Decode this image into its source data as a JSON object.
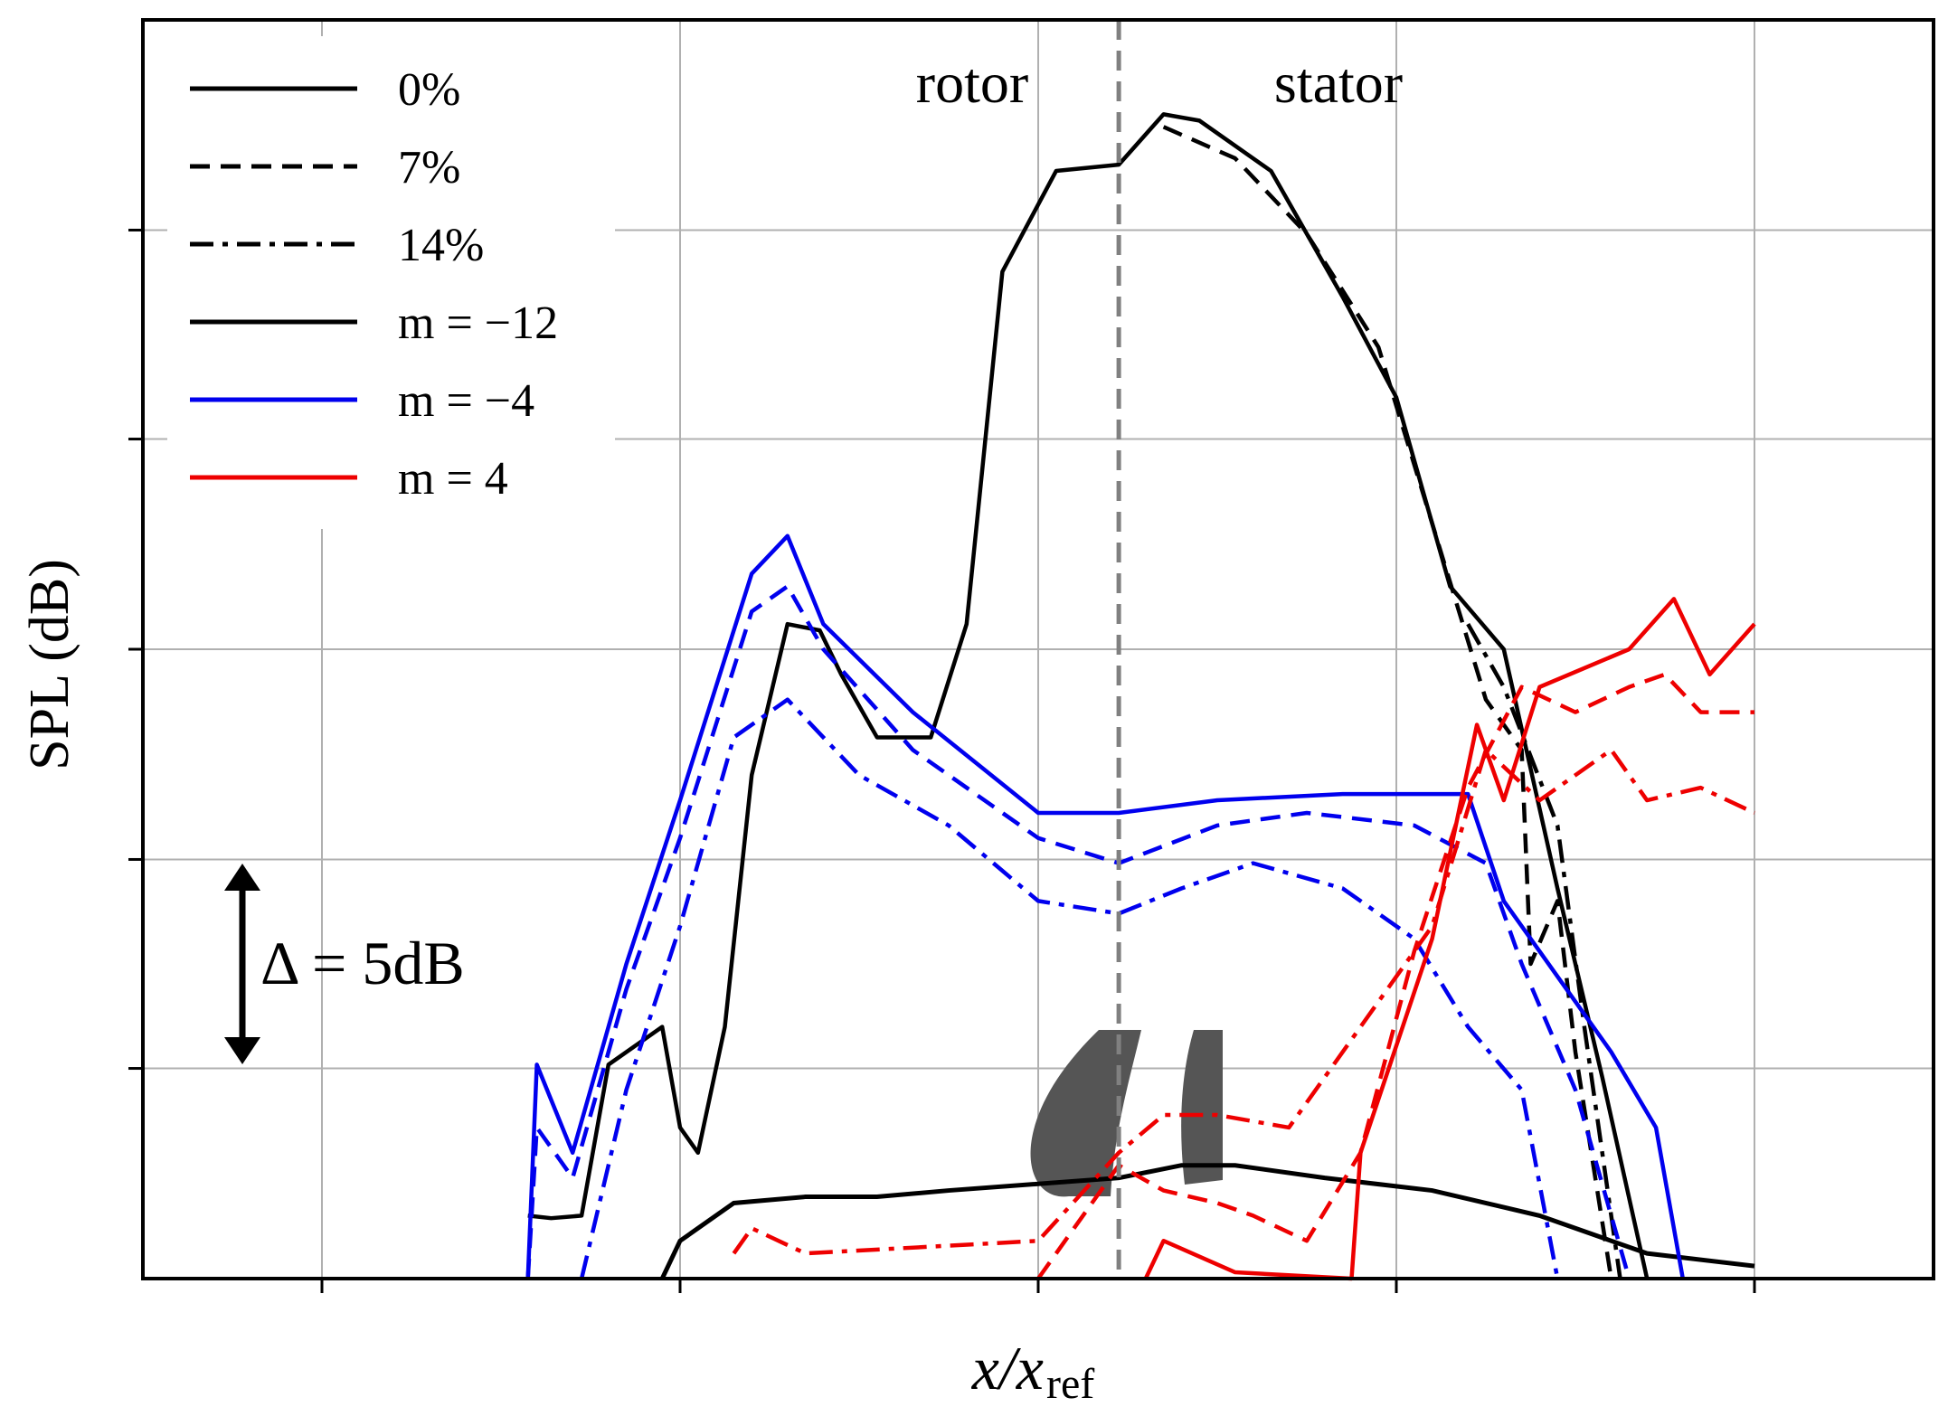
{
  "chart_data": {
    "type": "line",
    "title": "",
    "xlabel": "x/x",
    "xlabel_sub": "ref",
    "ylabel": "SPL (dB)",
    "xlim": [
      0,
      1
    ],
    "ylim": [
      0,
      1
    ],
    "grid": true,
    "x_ticks": [
      0.1,
      0.3,
      0.5,
      0.7,
      0.9
    ],
    "y_ticks": [
      0.167,
      0.333,
      0.5,
      0.667,
      0.833
    ],
    "legend_position": "top-left",
    "legend": [
      {
        "label": "0%",
        "color": "#000000",
        "style": "solid"
      },
      {
        "label": "7%",
        "color": "#000000",
        "style": "dashed"
      },
      {
        "label": "14%",
        "color": "#000000",
        "style": "dashdot"
      },
      {
        "label": "m = −12",
        "color": "#000000",
        "style": "solid"
      },
      {
        "label": "m =  −4",
        "color": "#0000ee",
        "style": "solid"
      },
      {
        "label": "m =    4",
        "color": "#ee0000",
        "style": "solid"
      }
    ],
    "annotations": {
      "rotor": "rotor",
      "stator": "stator",
      "delta": "Δ =  5dB",
      "interface_x": 0.545
    },
    "series": [
      {
        "name": "m=-12 0%",
        "color": "#000000",
        "dash": "solid",
        "points": [
          [
            0.215,
            0.05
          ],
          [
            0.228,
            0.048
          ],
          [
            0.245,
            0.05
          ],
          [
            0.26,
            0.17
          ],
          [
            0.29,
            0.2
          ],
          [
            0.3,
            0.12
          ],
          [
            0.31,
            0.1
          ],
          [
            0.325,
            0.2
          ],
          [
            0.34,
            0.4
          ],
          [
            0.36,
            0.52
          ],
          [
            0.378,
            0.515
          ],
          [
            0.39,
            0.48
          ],
          [
            0.41,
            0.43
          ],
          [
            0.44,
            0.43
          ],
          [
            0.46,
            0.52
          ],
          [
            0.48,
            0.8
          ],
          [
            0.51,
            0.88
          ],
          [
            0.545,
            0.885
          ],
          [
            0.57,
            0.925
          ],
          [
            0.59,
            0.92
          ],
          [
            0.63,
            0.88
          ],
          [
            0.67,
            0.78
          ],
          [
            0.7,
            0.7
          ],
          [
            0.73,
            0.55
          ],
          [
            0.76,
            0.5
          ],
          [
            0.79,
            0.31
          ],
          [
            0.815,
            0.16
          ],
          [
            0.84,
            0.0
          ]
        ]
      },
      {
        "name": "m=-12 7%",
        "color": "#000000",
        "dash": "dashed",
        "points": [
          [
            0.57,
            0.915
          ],
          [
            0.61,
            0.89
          ],
          [
            0.65,
            0.83
          ],
          [
            0.69,
            0.74
          ],
          [
            0.72,
            0.6
          ],
          [
            0.75,
            0.46
          ],
          [
            0.77,
            0.42
          ],
          [
            0.775,
            0.25
          ],
          [
            0.79,
            0.3
          ],
          [
            0.8,
            0.18
          ],
          [
            0.82,
            0.0
          ]
        ]
      },
      {
        "name": "m=-12 14%",
        "color": "#000000",
        "dash": "dashdot",
        "points": [
          [
            0.74,
            0.52
          ],
          [
            0.76,
            0.47
          ],
          [
            0.79,
            0.36
          ],
          [
            0.805,
            0.2
          ],
          [
            0.825,
            0.0
          ]
        ]
      },
      {
        "name": "m=-4 0%",
        "color": "#0000ee",
        "dash": "solid",
        "points": [
          [
            0.215,
            0.0
          ],
          [
            0.22,
            0.17
          ],
          [
            0.24,
            0.1
          ],
          [
            0.27,
            0.25
          ],
          [
            0.3,
            0.38
          ],
          [
            0.34,
            0.56
          ],
          [
            0.36,
            0.59
          ],
          [
            0.38,
            0.52
          ],
          [
            0.43,
            0.45
          ],
          [
            0.5,
            0.37
          ],
          [
            0.545,
            0.37
          ],
          [
            0.6,
            0.38
          ],
          [
            0.67,
            0.385
          ],
          [
            0.74,
            0.385
          ],
          [
            0.76,
            0.3
          ],
          [
            0.78,
            0.26
          ],
          [
            0.82,
            0.18
          ],
          [
            0.845,
            0.12
          ],
          [
            0.86,
            0.0
          ]
        ]
      },
      {
        "name": "m=-4 7%",
        "color": "#0000ee",
        "dash": "dashed",
        "points": [
          [
            0.215,
            0.0
          ],
          [
            0.22,
            0.12
          ],
          [
            0.24,
            0.08
          ],
          [
            0.27,
            0.23
          ],
          [
            0.3,
            0.35
          ],
          [
            0.34,
            0.53
          ],
          [
            0.36,
            0.55
          ],
          [
            0.38,
            0.5
          ],
          [
            0.43,
            0.42
          ],
          [
            0.5,
            0.35
          ],
          [
            0.545,
            0.33
          ],
          [
            0.6,
            0.36
          ],
          [
            0.65,
            0.37
          ],
          [
            0.71,
            0.36
          ],
          [
            0.75,
            0.33
          ],
          [
            0.77,
            0.25
          ],
          [
            0.8,
            0.15
          ],
          [
            0.83,
            0.0
          ]
        ]
      },
      {
        "name": "m=-4 14%",
        "color": "#0000ee",
        "dash": "dashdot",
        "points": [
          [
            0.245,
            0.0
          ],
          [
            0.27,
            0.15
          ],
          [
            0.3,
            0.28
          ],
          [
            0.33,
            0.43
          ],
          [
            0.36,
            0.46
          ],
          [
            0.4,
            0.4
          ],
          [
            0.45,
            0.36
          ],
          [
            0.5,
            0.3
          ],
          [
            0.545,
            0.29
          ],
          [
            0.58,
            0.31
          ],
          [
            0.62,
            0.33
          ],
          [
            0.67,
            0.31
          ],
          [
            0.71,
            0.27
          ],
          [
            0.74,
            0.2
          ],
          [
            0.77,
            0.15
          ],
          [
            0.79,
            0.0
          ]
        ]
      },
      {
        "name": "m=4 0%",
        "color": "#ee0000",
        "dash": "solid",
        "points": [
          [
            0.56,
            0.0
          ],
          [
            0.57,
            0.03
          ],
          [
            0.61,
            0.005
          ],
          [
            0.675,
            0.0
          ],
          [
            0.68,
            0.1
          ],
          [
            0.72,
            0.27
          ],
          [
            0.745,
            0.44
          ],
          [
            0.76,
            0.38
          ],
          [
            0.78,
            0.47
          ],
          [
            0.83,
            0.5
          ],
          [
            0.855,
            0.54
          ],
          [
            0.875,
            0.48
          ],
          [
            0.9,
            0.52
          ]
        ]
      },
      {
        "name": "m=4 7%",
        "color": "#ee0000",
        "dash": "dashed",
        "points": [
          [
            0.5,
            0.0
          ],
          [
            0.545,
            0.09
          ],
          [
            0.57,
            0.07
          ],
          [
            0.6,
            0.06
          ],
          [
            0.62,
            0.05
          ],
          [
            0.65,
            0.03
          ],
          [
            0.68,
            0.1
          ],
          [
            0.71,
            0.26
          ],
          [
            0.74,
            0.39
          ],
          [
            0.77,
            0.47
          ],
          [
            0.8,
            0.45
          ],
          [
            0.83,
            0.47
          ],
          [
            0.85,
            0.48
          ],
          [
            0.87,
            0.45
          ],
          [
            0.9,
            0.45
          ]
        ]
      },
      {
        "name": "m=4 14%",
        "color": "#ee0000",
        "dash": "dashdot",
        "points": [
          [
            0.33,
            0.02
          ],
          [
            0.34,
            0.04
          ],
          [
            0.37,
            0.02
          ],
          [
            0.5,
            0.03
          ],
          [
            0.545,
            0.1
          ],
          [
            0.57,
            0.13
          ],
          [
            0.6,
            0.13
          ],
          [
            0.64,
            0.12
          ],
          [
            0.68,
            0.2
          ],
          [
            0.72,
            0.28
          ],
          [
            0.75,
            0.42
          ],
          [
            0.78,
            0.38
          ],
          [
            0.82,
            0.42
          ],
          [
            0.84,
            0.38
          ],
          [
            0.87,
            0.39
          ],
          [
            0.9,
            0.37
          ]
        ]
      }
    ],
    "geometry_outline": [
      [
        0.29,
        0.0
      ],
      [
        0.3,
        0.03
      ],
      [
        0.33,
        0.06
      ],
      [
        0.37,
        0.065
      ],
      [
        0.41,
        0.065
      ],
      [
        0.45,
        0.07
      ],
      [
        0.545,
        0.08
      ],
      [
        0.58,
        0.09
      ],
      [
        0.61,
        0.09
      ],
      [
        0.66,
        0.08
      ],
      [
        0.72,
        0.07
      ],
      [
        0.78,
        0.05
      ],
      [
        0.84,
        0.02
      ],
      [
        0.9,
        0.01
      ]
    ]
  }
}
